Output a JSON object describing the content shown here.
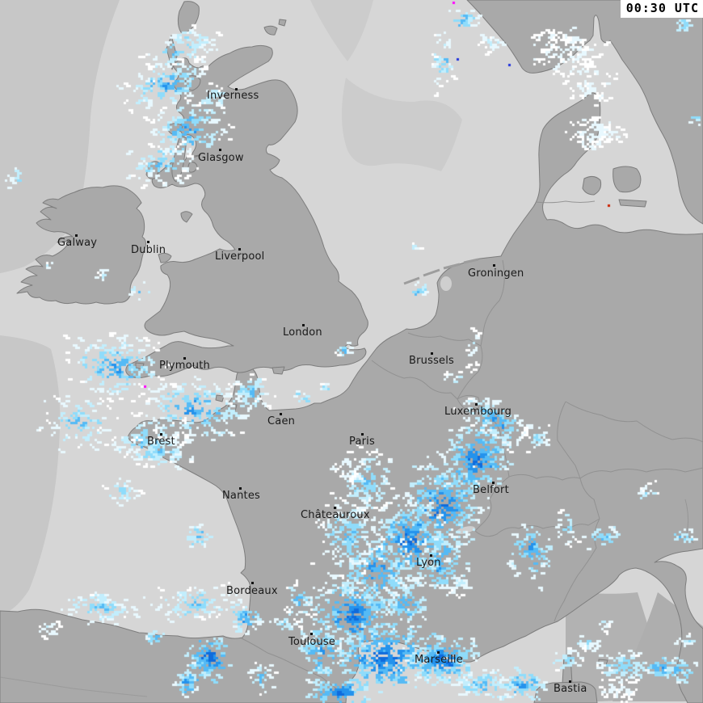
{
  "timestamp": "00:30 UTC",
  "map": {
    "colors": {
      "sea_covered": "#d6d6d6",
      "sea_uncovered": "#c7c7c7",
      "sea_gap_north": "#cccccc",
      "sea_dark_wedge": "#b0b0b0",
      "land": "#a9a9a9",
      "coast": "#7d7d7d",
      "border": "#8f8f8f",
      "label": "#1a1a1a",
      "lake": "#cfcfcf"
    },
    "cities": [
      {
        "name": "Inverness",
        "dot": [
          292,
          110
        ],
        "label": [
          256,
          111
        ]
      },
      {
        "name": "Glasgow",
        "dot": [
          272,
          185
        ],
        "label": [
          245,
          188
        ]
      },
      {
        "name": "Galway",
        "dot": [
          94,
          291
        ],
        "label": [
          71,
          293
        ]
      },
      {
        "name": "Dublin",
        "dot": [
          183,
          299
        ],
        "label": [
          162,
          302
        ]
      },
      {
        "name": "Liverpool",
        "dot": [
          296,
          308
        ],
        "label": [
          266,
          310
        ]
      },
      {
        "name": "Groningen",
        "dot": [
          611,
          328
        ],
        "label": [
          579,
          331
        ]
      },
      {
        "name": "London",
        "dot": [
          375,
          402
        ],
        "label": [
          350,
          404
        ]
      },
      {
        "name": "Brussels",
        "dot": [
          534,
          437
        ],
        "label": [
          506,
          439
        ]
      },
      {
        "name": "Plymouth",
        "dot": [
          228,
          443
        ],
        "label": [
          197,
          445
        ]
      },
      {
        "name": "Caen",
        "dot": [
          347,
          512
        ],
        "label": [
          331,
          514
        ]
      },
      {
        "name": "Luxembourg",
        "dot": [
          589,
          500
        ],
        "label": [
          550,
          502
        ]
      },
      {
        "name": "Brest",
        "dot": [
          199,
          537
        ],
        "label": [
          182,
          539
        ]
      },
      {
        "name": "Paris",
        "dot": [
          448,
          537
        ],
        "label": [
          432,
          539
        ]
      },
      {
        "name": "Nantes",
        "dot": [
          297,
          604
        ],
        "label": [
          275,
          606
        ]
      },
      {
        "name": "Châteauroux",
        "dot": [
          414,
          628
        ],
        "label": [
          372,
          630
        ]
      },
      {
        "name": "Belfort",
        "dot": [
          610,
          597
        ],
        "label": [
          585,
          599
        ]
      },
      {
        "name": "Lyon",
        "dot": [
          533,
          687
        ],
        "label": [
          515,
          689
        ]
      },
      {
        "name": "Bordeaux",
        "dot": [
          312,
          721
        ],
        "label": [
          280,
          724
        ]
      },
      {
        "name": "Toulouse",
        "dot": [
          385,
          784
        ],
        "label": [
          357,
          787
        ]
      },
      {
        "name": "Marseille",
        "dot": [
          542,
          807
        ],
        "label": [
          513,
          809
        ]
      },
      {
        "name": "Bastia",
        "dot": [
          705,
          843
        ],
        "label": [
          685,
          845
        ]
      }
    ],
    "precip": {
      "palette": [
        "#ffffff",
        "#e8f8fe",
        "#c2eefd",
        "#8fdcfb",
        "#55baf5",
        "#2492ec",
        "#0f6bdc"
      ],
      "clusters": [
        [
          222,
          58,
          55,
          26,
          -25,
          80,
          0,
          4
        ],
        [
          205,
          103,
          62,
          36,
          -18,
          130,
          0,
          5
        ],
        [
          232,
          158,
          56,
          40,
          -12,
          140,
          0,
          5
        ],
        [
          196,
          200,
          46,
          30,
          -8,
          80,
          0,
          4
        ],
        [
          262,
          120,
          26,
          18,
          0,
          35,
          0,
          3
        ],
        [
          546,
          74,
          16,
          44,
          0,
          40,
          0,
          4
        ],
        [
          572,
          22,
          20,
          16,
          0,
          35,
          1,
          4
        ],
        [
          600,
          47,
          10,
          12,
          0,
          12,
          0,
          3
        ],
        [
          614,
          52,
          22,
          14,
          0,
          14,
          0,
          2
        ],
        [
          845,
          28,
          10,
          8,
          0,
          12,
          1,
          4
        ],
        [
          858,
          145,
          8,
          14,
          0,
          10,
          1,
          3
        ],
        [
          700,
          62,
          50,
          33,
          12,
          150,
          0,
          1
        ],
        [
          728,
          108,
          36,
          22,
          0,
          60,
          0,
          1
        ],
        [
          737,
          163,
          40,
          22,
          -8,
          90,
          0,
          1
        ],
        [
          16,
          222,
          12,
          20,
          0,
          12,
          1,
          3
        ],
        [
          172,
          360,
          14,
          14,
          0,
          12,
          1,
          4
        ],
        [
          60,
          330,
          8,
          8,
          0,
          6,
          0,
          2
        ],
        [
          124,
          338,
          12,
          8,
          0,
          8,
          0,
          2
        ],
        [
          140,
          452,
          72,
          46,
          8,
          170,
          0,
          5
        ],
        [
          240,
          505,
          82,
          46,
          4,
          190,
          0,
          5
        ],
        [
          95,
          520,
          52,
          40,
          0,
          80,
          0,
          4
        ],
        [
          180,
          545,
          60,
          34,
          0,
          90,
          0,
          4
        ],
        [
          310,
          482,
          34,
          24,
          0,
          55,
          0,
          4
        ],
        [
          195,
          557,
          45,
          24,
          0,
          70,
          0,
          4
        ],
        [
          150,
          607,
          28,
          24,
          0,
          30,
          0,
          3
        ],
        [
          243,
          663,
          16,
          20,
          0,
          25,
          1,
          4
        ],
        [
          425,
          431,
          13,
          9,
          0,
          14,
          0,
          4
        ],
        [
          370,
          489,
          11,
          9,
          0,
          12,
          1,
          4
        ],
        [
          400,
          478,
          9,
          7,
          0,
          8,
          0,
          3
        ],
        [
          560,
          468,
          12,
          14,
          0,
          10,
          0,
          3
        ],
        [
          585,
          430,
          16,
          38,
          0,
          16,
          0,
          2
        ],
        [
          516,
          358,
          12,
          13,
          0,
          14,
          1,
          4
        ],
        [
          512,
          305,
          8,
          8,
          0,
          6,
          0,
          2
        ],
        [
          612,
          519,
          55,
          27,
          35,
          130,
          0,
          5
        ],
        [
          586,
          569,
          46,
          58,
          25,
          220,
          1,
          6
        ],
        [
          545,
          624,
          56,
          64,
          25,
          260,
          1,
          6
        ],
        [
          505,
          668,
          56,
          60,
          20,
          260,
          1,
          6
        ],
        [
          547,
          693,
          34,
          42,
          10,
          100,
          1,
          5
        ],
        [
          465,
          705,
          56,
          54,
          15,
          220,
          1,
          5
        ],
        [
          430,
          660,
          46,
          54,
          15,
          150,
          0,
          4
        ],
        [
          452,
          594,
          40,
          45,
          20,
          120,
          0,
          4
        ],
        [
          430,
          574,
          20,
          24,
          0,
          30,
          0,
          1
        ],
        [
          662,
          540,
          18,
          24,
          0,
          25,
          0,
          3
        ],
        [
          435,
          760,
          56,
          54,
          10,
          240,
          1,
          6
        ],
        [
          475,
          812,
          68,
          48,
          0,
          300,
          2,
          6
        ],
        [
          545,
          815,
          54,
          34,
          0,
          200,
          1,
          6
        ],
        [
          395,
          805,
          30,
          45,
          0,
          100,
          1,
          5
        ],
        [
          420,
          855,
          40,
          18,
          0,
          90,
          2,
          6
        ],
        [
          596,
          845,
          34,
          22,
          0,
          70,
          1,
          4
        ],
        [
          568,
          720,
          18,
          20,
          0,
          25,
          0,
          2
        ],
        [
          500,
          745,
          30,
          30,
          0,
          70,
          1,
          5
        ],
        [
          368,
          740,
          24,
          28,
          0,
          45,
          0,
          4
        ],
        [
          655,
          680,
          28,
          44,
          10,
          70,
          1,
          5
        ],
        [
          700,
          650,
          20,
          24,
          0,
          25,
          0,
          3
        ],
        [
          745,
          662,
          24,
          18,
          0,
          30,
          1,
          4
        ],
        [
          843,
          662,
          16,
          9,
          0,
          15,
          1,
          4
        ],
        [
          800,
          608,
          14,
          16,
          0,
          12,
          0,
          3
        ],
        [
          120,
          750,
          60,
          22,
          5,
          75,
          0,
          4
        ],
        [
          240,
          745,
          62,
          25,
          -5,
          85,
          0,
          4
        ],
        [
          300,
          762,
          24,
          20,
          0,
          45,
          1,
          5
        ],
        [
          190,
          787,
          14,
          12,
          0,
          16,
          1,
          4
        ],
        [
          60,
          777,
          14,
          10,
          0,
          12,
          0,
          3
        ],
        [
          350,
          770,
          20,
          12,
          0,
          20,
          0,
          3
        ],
        [
          258,
          812,
          26,
          30,
          -20,
          95,
          2,
          6
        ],
        [
          230,
          842,
          18,
          24,
          0,
          45,
          1,
          5
        ],
        [
          322,
          838,
          20,
          24,
          0,
          35,
          0,
          4
        ],
        [
          645,
          845,
          34,
          22,
          0,
          85,
          1,
          5
        ],
        [
          700,
          815,
          24,
          16,
          0,
          30,
          0,
          3
        ],
        [
          770,
          822,
          44,
          24,
          0,
          80,
          0,
          4
        ],
        [
          815,
          824,
          20,
          14,
          0,
          40,
          2,
          5
        ],
        [
          838,
          828,
          22,
          18,
          0,
          35,
          1,
          4
        ],
        [
          725,
          792,
          18,
          11,
          0,
          20,
          0,
          3
        ],
        [
          850,
          792,
          16,
          11,
          0,
          15,
          0,
          3
        ],
        [
          745,
          772,
          14,
          9,
          0,
          12,
          0,
          2
        ],
        [
          760,
          852,
          30,
          16,
          0,
          45,
          0,
          1
        ]
      ],
      "strikes": [
        [
          178,
          477,
          "#ff00ff"
        ],
        [
          560,
          2,
          "#ff00ff"
        ],
        [
          752,
          253,
          "#cc2200"
        ],
        [
          629,
          79,
          "#2233dd"
        ],
        [
          565,
          72,
          "#2233dd"
        ]
      ]
    }
  }
}
